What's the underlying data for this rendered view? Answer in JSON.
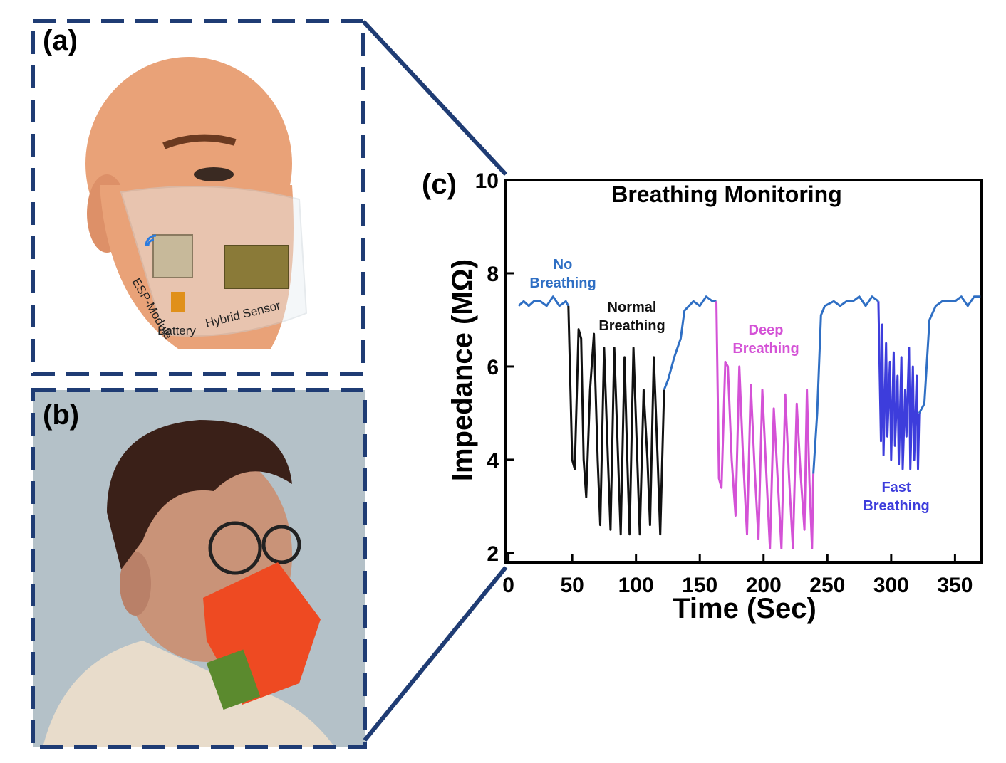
{
  "panels": {
    "a": {
      "label": "(a)",
      "annotations": [
        "ESP-Module",
        "Battery",
        "Hybrid Sensor"
      ]
    },
    "b": {
      "label": "(b)"
    }
  },
  "chart_data": {
    "type": "line",
    "panel_label": "(c)",
    "title": "Breathing Monitoring",
    "xlabel": "Time (Sec)",
    "ylabel": "Impedance (MΩ)",
    "xlim": [
      -2,
      371
    ],
    "ylim": [
      1.8,
      10
    ],
    "xticks": [
      0,
      50,
      100,
      150,
      200,
      250,
      300,
      350
    ],
    "yticks": [
      2,
      4,
      6,
      8,
      10
    ],
    "series": [
      {
        "name": "No Breathing",
        "color": "#2f6fc4",
        "x": [
          8,
          12,
          16,
          20,
          25,
          30,
          35,
          40,
          45,
          47,
          85,
          122,
          125,
          130,
          135,
          138,
          145,
          150,
          155,
          160,
          163,
          200,
          239,
          242,
          245,
          248,
          255,
          260,
          265,
          270,
          275,
          280,
          285,
          290,
          306,
          322,
          326,
          330,
          335,
          340,
          345,
          350,
          355,
          360,
          365,
          370
        ],
        "values": [
          7.3,
          7.4,
          7.3,
          7.4,
          7.4,
          7.3,
          7.5,
          7.3,
          7.4,
          7.3,
          null,
          5.5,
          5.7,
          6.2,
          6.6,
          7.2,
          7.4,
          7.3,
          7.5,
          7.4,
          7.4,
          null,
          3.7,
          5.0,
          7.1,
          7.3,
          7.4,
          7.3,
          7.4,
          7.4,
          7.5,
          7.3,
          7.5,
          7.4,
          null,
          5.0,
          5.2,
          7.0,
          7.3,
          7.4,
          7.4,
          7.4,
          7.5,
          7.3,
          7.5,
          7.5
        ]
      },
      {
        "name": "Normal Breathing",
        "color": "#111111",
        "x": [
          47,
          50,
          52,
          55,
          57,
          59,
          61,
          64,
          67,
          70,
          72,
          75,
          78,
          80,
          83,
          86,
          88,
          91,
          93,
          95,
          98,
          101,
          103,
          106,
          109,
          111,
          114,
          117,
          119,
          122
        ],
        "values": [
          7.3,
          4.0,
          3.8,
          6.8,
          6.6,
          4.0,
          3.2,
          5.5,
          6.7,
          4.0,
          2.6,
          6.4,
          4.0,
          2.5,
          6.4,
          4.0,
          2.4,
          6.2,
          4.2,
          2.4,
          6.4,
          4.0,
          2.4,
          5.5,
          4.0,
          2.6,
          6.2,
          4.0,
          2.4,
          5.5
        ]
      },
      {
        "name": "Deep Breathing",
        "color": "#d452d6",
        "x": [
          163,
          165,
          167,
          170,
          172,
          175,
          178,
          181,
          184,
          187,
          190,
          193,
          196,
          199,
          202,
          205,
          208,
          211,
          214,
          217,
          220,
          223,
          226,
          229,
          232,
          234,
          236,
          238,
          239
        ],
        "values": [
          7.4,
          3.6,
          3.4,
          6.1,
          6.0,
          4.0,
          2.8,
          6.0,
          4.0,
          2.4,
          5.6,
          3.8,
          2.3,
          5.5,
          3.8,
          2.1,
          5.1,
          3.6,
          2.1,
          5.4,
          3.6,
          2.1,
          5.2,
          3.7,
          2.5,
          5.5,
          3.5,
          2.1,
          3.7
        ]
      },
      {
        "name": "Fast Breathing",
        "color": "#3d3ddc",
        "x": [
          290,
          292,
          293,
          294,
          296,
          297,
          299,
          300,
          302,
          303,
          305,
          306,
          308,
          309,
          311,
          312,
          314,
          315,
          317,
          318,
          320,
          321,
          322
        ],
        "values": [
          7.4,
          4.4,
          6.9,
          4.1,
          6.5,
          4.5,
          6.1,
          4.0,
          6.3,
          4.3,
          5.8,
          3.9,
          6.2,
          3.8,
          5.5,
          4.5,
          6.4,
          3.8,
          6.0,
          4.0,
          5.8,
          3.8,
          5.0
        ]
      }
    ]
  }
}
